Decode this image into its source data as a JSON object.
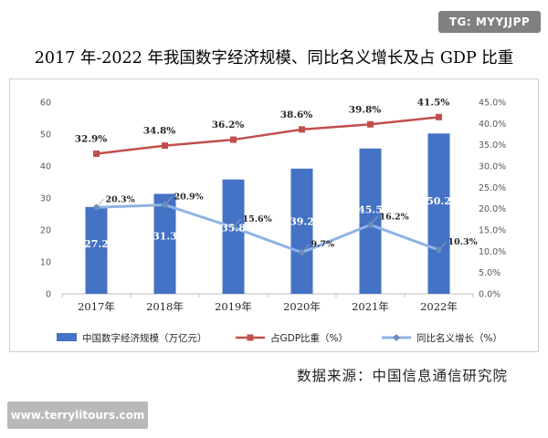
{
  "badge": "TG: MYYJJPP",
  "title": "2017 年-2022 年我国数字经济规模、同比名义增长及占 GDP 比重",
  "source": "数据来源：中国信息通信研究院",
  "watermark": "www.terrylitours.com",
  "chart_data": {
    "type": "bar",
    "categories": [
      "2017年",
      "2018年",
      "2019年",
      "2020年",
      "2021年",
      "2022年"
    ],
    "left_axis": {
      "min": 0,
      "max": 60,
      "step": 10
    },
    "right_axis": {
      "min": 0,
      "max": 45,
      "step": 5,
      "suffix": "%",
      "decimals": 1
    },
    "series": [
      {
        "name": "中国数字经济规模（万亿元）",
        "kind": "bar",
        "axis": "left",
        "color": "#4472C4",
        "values": [
          27.2,
          31.3,
          35.8,
          39.2,
          45.5,
          50.2
        ],
        "labels": [
          "27.2",
          "31.3",
          "35.8",
          "39.2",
          "45.5",
          "50.2"
        ]
      },
      {
        "name": "占GDP比重（%）",
        "kind": "line",
        "axis": "right",
        "color": "#C0504D",
        "marker": "square",
        "values": [
          32.9,
          34.8,
          36.2,
          38.6,
          39.8,
          41.5
        ],
        "labels": [
          "32.9%",
          "34.8%",
          "36.2%",
          "38.6%",
          "39.8%",
          "41.5%"
        ]
      },
      {
        "name": "同比名义增长（%）",
        "kind": "line",
        "axis": "right",
        "color": "#8EB4E3",
        "marker": "diamond",
        "values": [
          20.3,
          20.9,
          15.6,
          9.7,
          16.2,
          10.3
        ],
        "labels": [
          "20.3%",
          "20.9%",
          "15.6%",
          "9.7%",
          "16.2%",
          "10.3%"
        ]
      }
    ],
    "grid": false,
    "legend": "bottom"
  }
}
